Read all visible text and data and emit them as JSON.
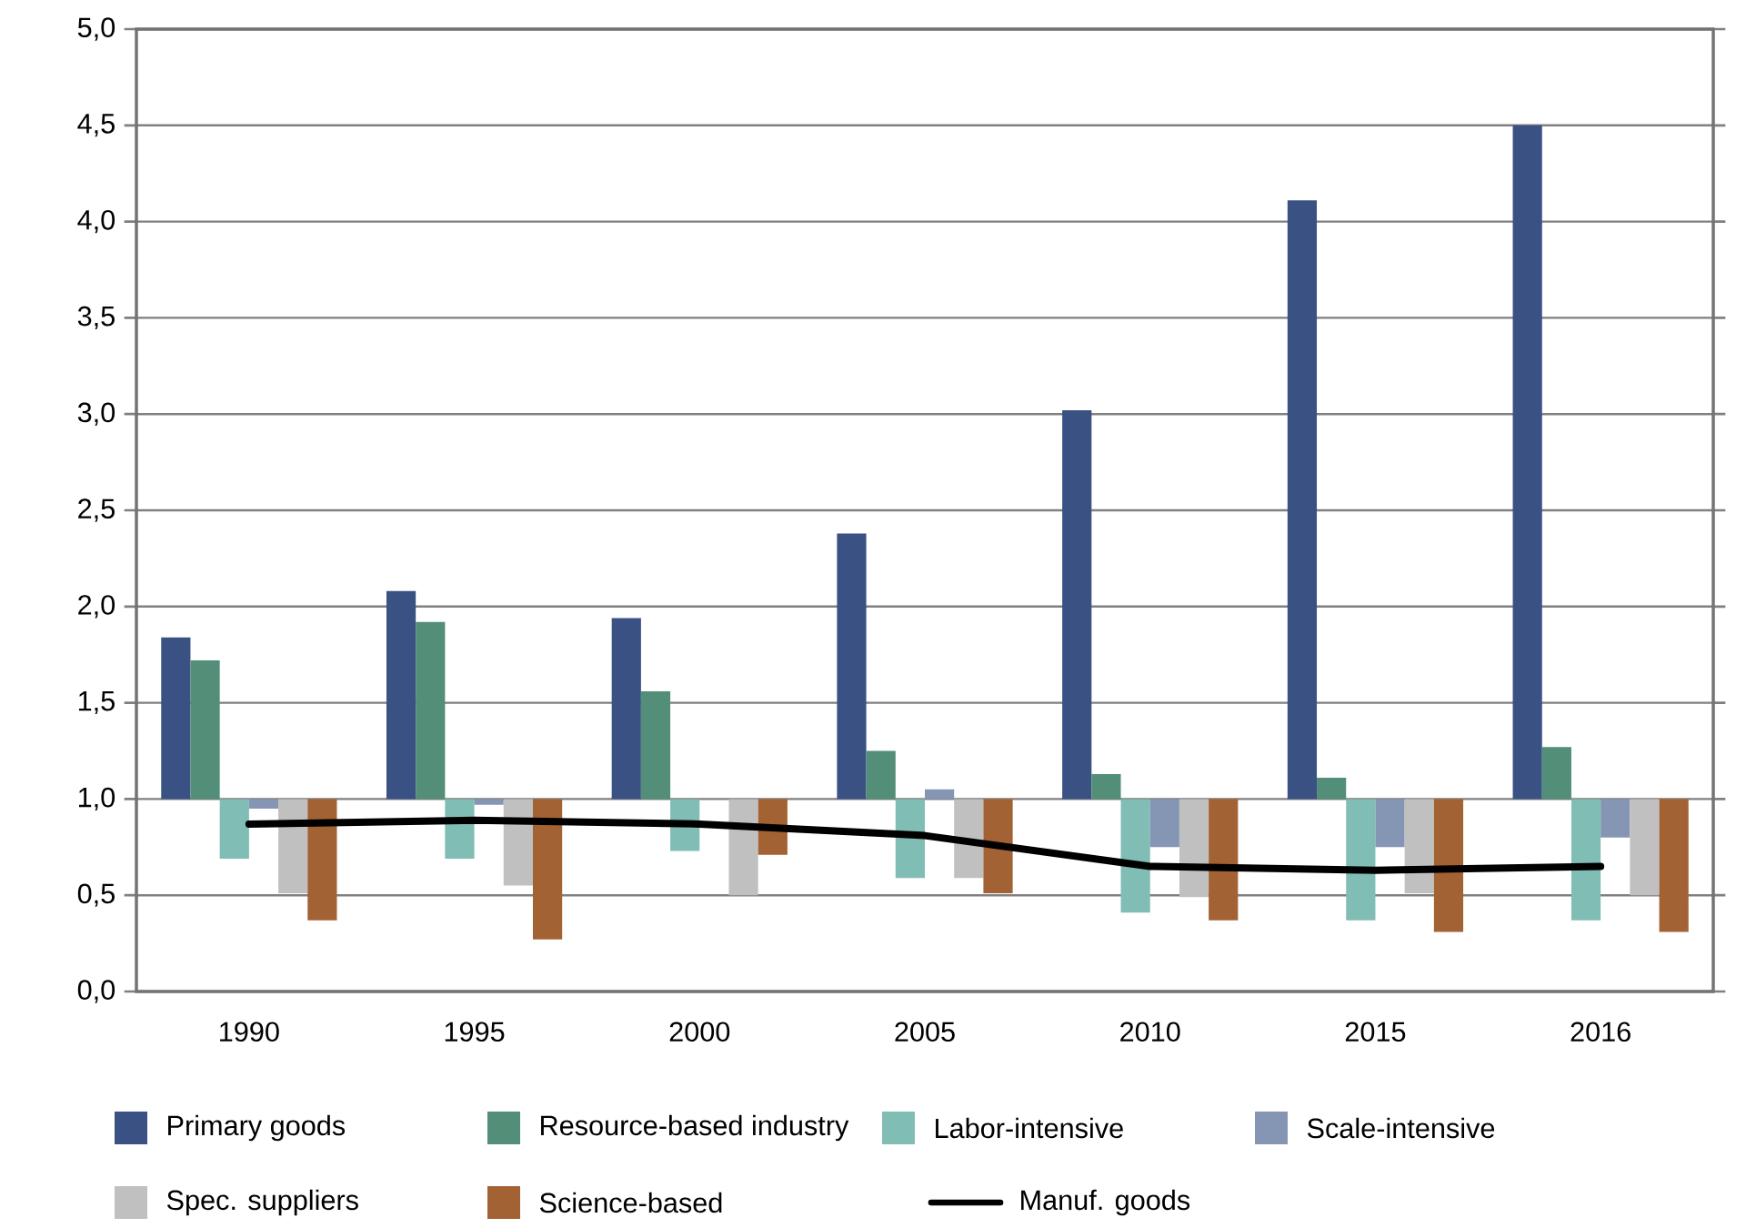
{
  "chart_data": {
    "type": "bar",
    "categories": [
      "1990",
      "1995",
      "2000",
      "2005",
      "2010",
      "2015",
      "2016"
    ],
    "series": [
      {
        "name": "Primary goods",
        "color": "#3a5283",
        "base": [
          1,
          1,
          1,
          1,
          1,
          1,
          1
        ],
        "values": [
          0.84,
          1.08,
          0.94,
          1.38,
          2.02,
          3.11,
          3.5
        ]
      },
      {
        "name": "Resource-based industry",
        "color": "#528e78",
        "base": [
          1,
          1,
          1,
          1,
          1,
          1,
          1
        ],
        "values": [
          0.72,
          0.92,
          0.56,
          0.25,
          0.13,
          0.11,
          0.27
        ]
      },
      {
        "name": "Labor-intensive",
        "color": "#80bdb4",
        "base": [
          1,
          1,
          1,
          1,
          1,
          1,
          1
        ],
        "values": [
          -0.31,
          -0.31,
          -0.27,
          -0.41,
          -0.59,
          -0.63,
          -0.63
        ]
      },
      {
        "name": "Scale-intensive",
        "color": "#8596b4",
        "base": [
          1,
          1,
          null,
          1,
          1,
          1,
          1
        ],
        "values": [
          -0.05,
          -0.03,
          null,
          0.05,
          -0.25,
          -0.25,
          -0.2
        ]
      },
      {
        "name": "Spec. suppliers",
        "color": "#c0c0c0",
        "base": [
          1,
          1,
          1,
          1,
          1,
          1,
          1
        ],
        "values": [
          -0.49,
          -0.45,
          -0.5,
          -0.41,
          -0.51,
          -0.49,
          -0.5
        ]
      },
      {
        "name": "Science-based",
        "color": "#a36233",
        "base": [
          1,
          1,
          1,
          1,
          1,
          1,
          1
        ],
        "values": [
          -0.63,
          -0.73,
          -0.29,
          -0.49,
          -0.63,
          -0.69,
          -0.69
        ]
      },
      {
        "name": "Manuf. goods",
        "color": "#000000",
        "type": "line",
        "values": [
          0.87,
          0.89,
          0.87,
          0.81,
          0.65,
          0.63,
          0.65
        ]
      }
    ],
    "ylim": [
      0,
      5
    ],
    "yticks": [
      {
        "value": 0,
        "label": "0,0"
      },
      {
        "value": 0.5,
        "label": "0,5"
      },
      {
        "value": 1,
        "label": "1,0"
      },
      {
        "value": 1.5,
        "label": "1,5"
      },
      {
        "value": 2,
        "label": "2,0"
      },
      {
        "value": 2.5,
        "label": "2,5"
      },
      {
        "value": 3,
        "label": "3,0"
      },
      {
        "value": 3.5,
        "label": "3,5"
      },
      {
        "value": 4,
        "label": "4,0"
      },
      {
        "value": 4.5,
        "label": "4,5"
      },
      {
        "value": 5,
        "label": "5,0"
      }
    ],
    "grid": "y",
    "legend": "bottom",
    "marker": "none",
    "line_style": "solid"
  }
}
